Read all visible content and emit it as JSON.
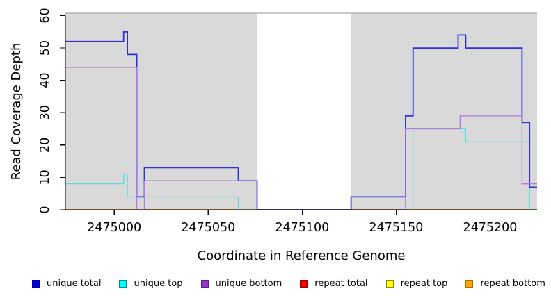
{
  "chart_data": {
    "type": "line",
    "subtype": "step-after-coverage",
    "title": "",
    "xlabel": "Coordinate in Reference Genome",
    "ylabel": "Read Coverage Depth",
    "xlim": [
      2474974,
      2475225
    ],
    "ylim": [
      0,
      60
    ],
    "x_ticks": [
      2475000,
      2475050,
      2475100,
      2475150,
      2475200
    ],
    "y_ticks": [
      0,
      10,
      20,
      30,
      40,
      50,
      60
    ],
    "grid": "off",
    "legend_position": "bottom",
    "panel_color": "#d9d9d9",
    "panel_border_color": "#999999",
    "shaded_regions": [
      {
        "from": 2474974,
        "to": 2475076
      },
      {
        "from": 2475126,
        "to": 2475225
      }
    ],
    "series": [
      {
        "name": "repeat top",
        "color": "#f0e030",
        "width": 1.2,
        "points": [
          [
            2474974,
            0
          ]
        ]
      },
      {
        "name": "repeat total",
        "color": "#e04343",
        "width": 1.2,
        "points": [
          [
            2474974,
            0
          ]
        ]
      },
      {
        "name": "repeat bottom",
        "color": "#ff9817",
        "width": 1.8,
        "points": [
          [
            2474974,
            0
          ]
        ]
      },
      {
        "name": "unique top",
        "color": "#4fe0e0",
        "width": 1.2,
        "points": [
          [
            2474974,
            8
          ],
          [
            2475005,
            11
          ],
          [
            2475007,
            4
          ],
          [
            2475066,
            0
          ],
          [
            2475159,
            25
          ],
          [
            2475187,
            21
          ],
          [
            2475221,
            0
          ]
        ]
      },
      {
        "name": "unique total",
        "color": "#3030d8",
        "width": 1.8,
        "points": [
          [
            2474974,
            52
          ],
          [
            2475005,
            55
          ],
          [
            2475007,
            48
          ],
          [
            2475012,
            4
          ],
          [
            2475016,
            13
          ],
          [
            2475066,
            9
          ],
          [
            2475076,
            0
          ],
          [
            2475126,
            4
          ],
          [
            2475155,
            29
          ],
          [
            2475159,
            50
          ],
          [
            2475183,
            54
          ],
          [
            2475187,
            50
          ],
          [
            2475217,
            27
          ],
          [
            2475221,
            7
          ]
        ]
      },
      {
        "name": "unique bottom",
        "color": "#ae7cdc",
        "width": 1.3,
        "points": [
          [
            2474974,
            44
          ],
          [
            2475012,
            0
          ],
          [
            2475016,
            9
          ],
          [
            2475076,
            0
          ],
          [
            2475155,
            25
          ],
          [
            2475184,
            29
          ],
          [
            2475217,
            8
          ]
        ]
      }
    ],
    "baseline_overlays": [
      {
        "from": 2475066,
        "to": 2475076,
        "color": "#7cd6ac"
      },
      {
        "from": 2475126,
        "to": 2475154,
        "color": "#e04343"
      },
      {
        "from": 2475221,
        "to": 2475225,
        "color": "#7cd6ac"
      }
    ],
    "legend": [
      {
        "label": "unique total",
        "fill": "#0000e0",
        "border": "#000090"
      },
      {
        "label": "unique top",
        "fill": "#00ffff",
        "border": "#008b8b"
      },
      {
        "label": "unique bottom",
        "fill": "#9932cc",
        "border": "#5c1a8a"
      },
      {
        "label": "repeat total",
        "fill": "#ff0000",
        "border": "#8b0000"
      },
      {
        "label": "repeat top",
        "fill": "#ffff00",
        "border": "#8b8b00"
      },
      {
        "label": "repeat bottom",
        "fill": "#ffa500",
        "border": "#b36b00"
      }
    ]
  }
}
